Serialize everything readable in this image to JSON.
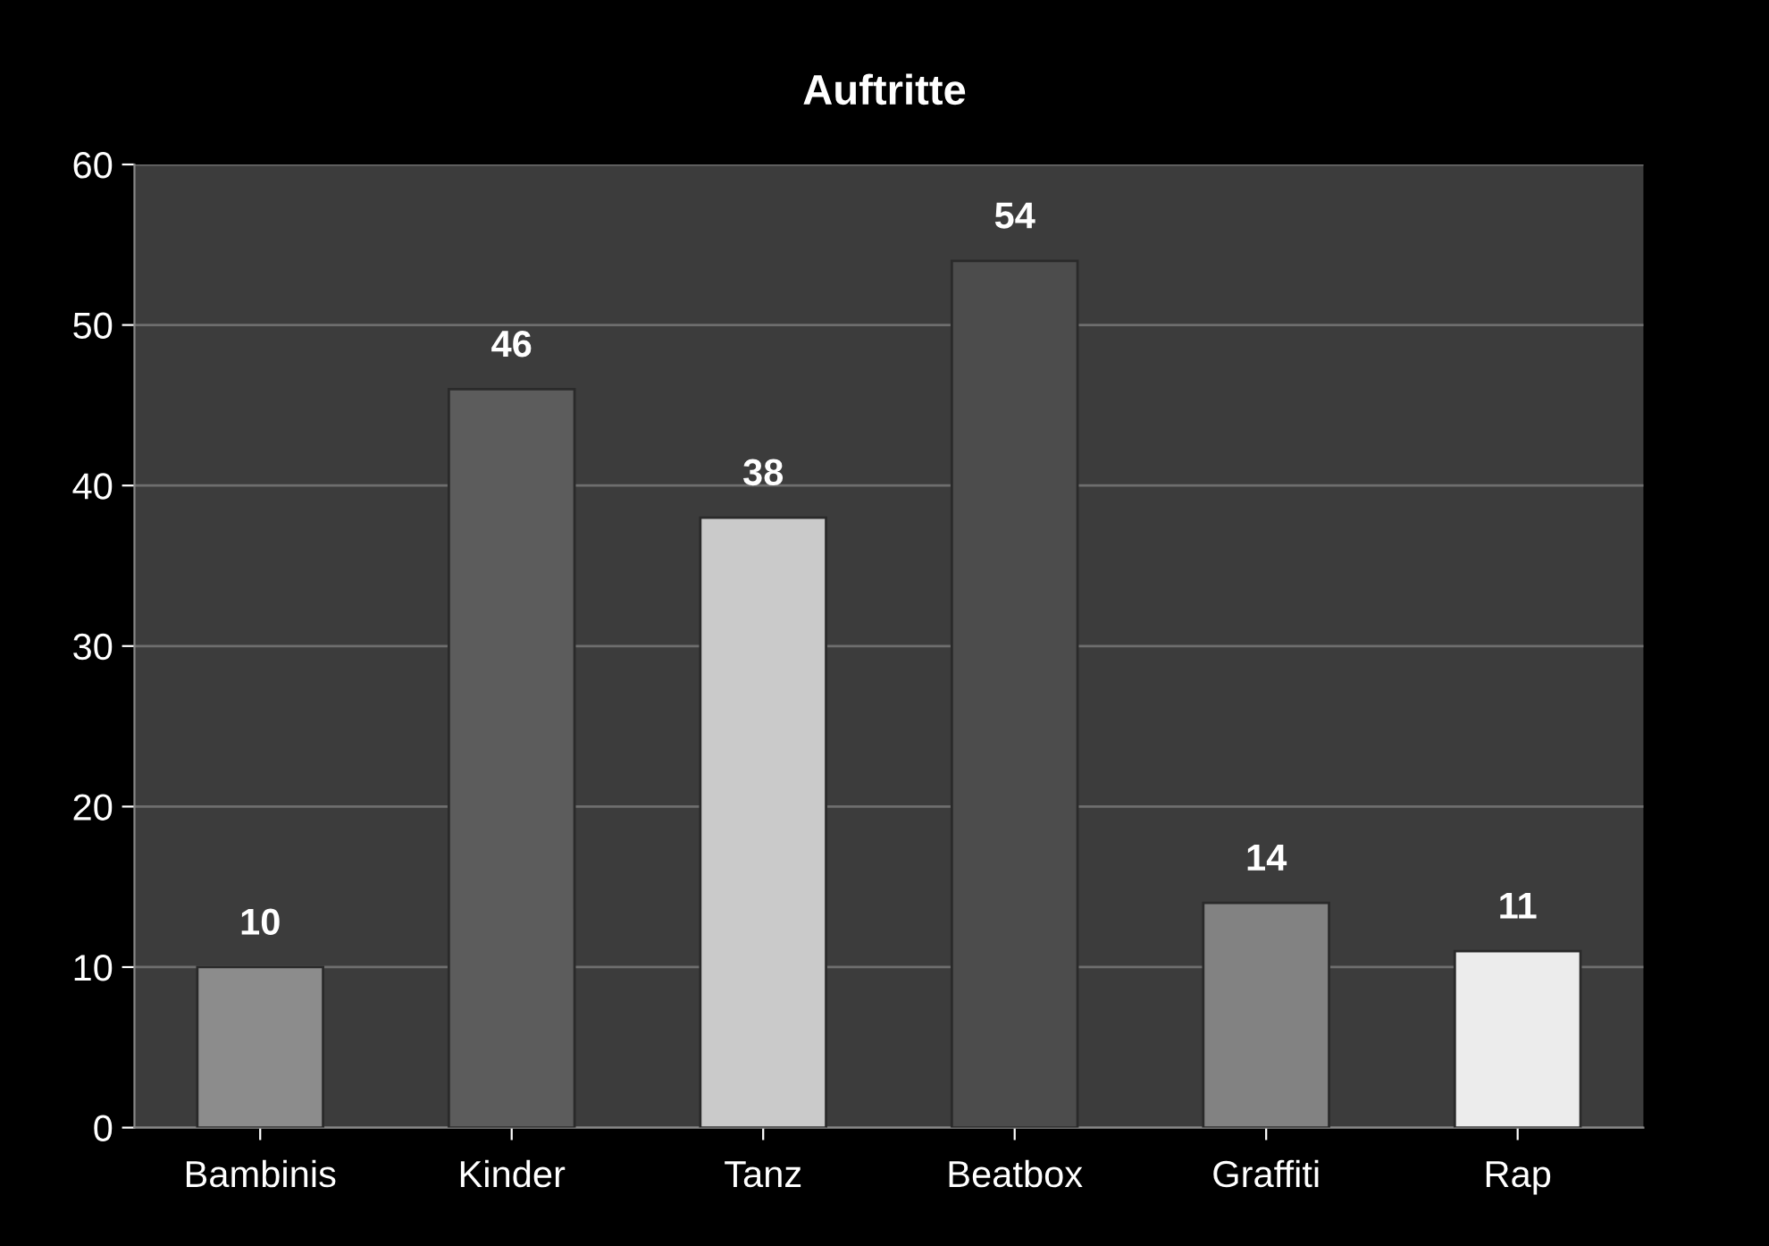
{
  "chart_data": {
    "type": "bar",
    "title": "Auftritte",
    "categories": [
      "Bambinis",
      "Kinder",
      "Tanz",
      "Beatbox",
      "Graffiti",
      "Rap"
    ],
    "values": [
      10,
      46,
      38,
      54,
      14,
      11
    ],
    "colors": [
      "#8c8c8c",
      "#5c5c5c",
      "#cacaca",
      "#4c4c4c",
      "#828282",
      "#ececec"
    ],
    "ylim": [
      0,
      60
    ],
    "yticks": [
      0,
      10,
      20,
      30,
      40,
      50,
      60
    ],
    "grid": "y",
    "data_labels": true
  }
}
